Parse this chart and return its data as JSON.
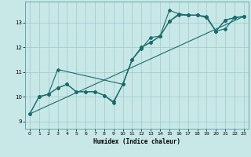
{
  "xlabel": "Humidex (Indice chaleur)",
  "bg_color": "#c8e8e8",
  "line_color": "#1a6b6b",
  "grid_color": "#a0c8c8",
  "xlim": [
    -0.5,
    23.5
  ],
  "ylim": [
    8.7,
    13.85
  ],
  "yticks": [
    9,
    10,
    11,
    12,
    13
  ],
  "xticks": [
    0,
    1,
    2,
    3,
    4,
    5,
    6,
    7,
    8,
    9,
    10,
    11,
    12,
    13,
    14,
    15,
    16,
    17,
    18,
    19,
    20,
    21,
    22,
    23
  ],
  "line1_x": [
    0,
    1,
    2,
    3,
    4,
    5,
    6,
    7,
    8,
    9,
    10,
    11,
    12,
    13,
    14,
    15,
    16,
    17,
    18,
    19,
    20,
    21,
    22,
    23
  ],
  "line1_y": [
    9.3,
    10.0,
    10.1,
    10.35,
    10.5,
    10.2,
    10.2,
    10.2,
    10.05,
    9.8,
    10.5,
    11.5,
    11.95,
    12.4,
    12.45,
    13.5,
    13.35,
    13.3,
    13.3,
    13.25,
    12.65,
    13.1,
    13.2,
    13.25
  ],
  "line2_x": [
    0,
    1,
    2,
    3,
    4,
    5,
    6,
    7,
    8,
    9,
    10,
    11,
    12,
    13,
    14,
    15,
    16,
    17,
    18,
    19,
    20,
    21,
    22,
    23
  ],
  "line2_y": [
    9.3,
    10.0,
    10.1,
    10.35,
    10.5,
    10.2,
    10.2,
    10.2,
    10.05,
    9.75,
    10.5,
    11.5,
    12.0,
    12.2,
    12.45,
    13.05,
    13.3,
    13.3,
    13.3,
    13.2,
    12.65,
    13.1,
    13.2,
    13.25
  ],
  "line3_x": [
    1,
    2,
    3,
    10,
    11,
    12,
    13,
    14,
    15,
    16,
    17,
    18,
    19,
    20,
    21,
    22,
    23
  ],
  "line3_y": [
    10.0,
    10.1,
    11.1,
    10.5,
    11.5,
    12.0,
    12.2,
    12.45,
    13.05,
    13.35,
    13.3,
    13.3,
    13.2,
    12.65,
    12.75,
    13.2,
    13.25
  ],
  "line4_x": [
    0,
    23
  ],
  "line4_y": [
    9.3,
    13.25
  ]
}
